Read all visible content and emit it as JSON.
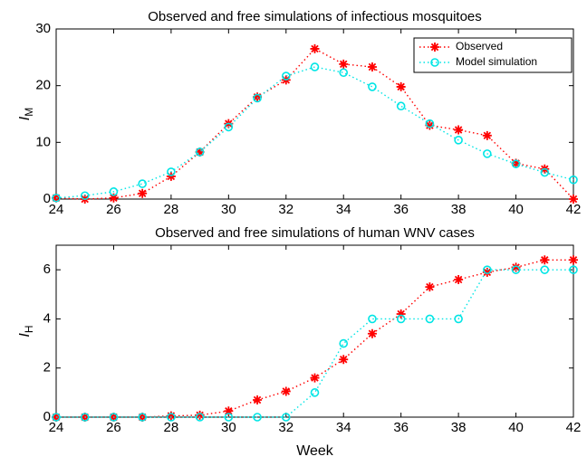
{
  "chart_data": [
    {
      "type": "line",
      "title": "Observed and free simulations of infectious mosquitoes",
      "y_label": {
        "symbol": "I",
        "subscript": "M"
      },
      "x": [
        24,
        25,
        26,
        27,
        28,
        29,
        30,
        31,
        32,
        33,
        34,
        35,
        36,
        37,
        38,
        39,
        40,
        41,
        42
      ],
      "series": [
        {
          "name": "Observed",
          "color": "#ff0000",
          "marker": "asterisk",
          "values": [
            0.2,
            0,
            0.2,
            1,
            4,
            8.3,
            13.3,
            18,
            21,
            26.5,
            23.8,
            23.3,
            19.8,
            13,
            12.2,
            11.2,
            6.3,
            5.3,
            0
          ]
        },
        {
          "name": "Model simulation",
          "color": "#00e5e5",
          "marker": "circle",
          "values": [
            0.2,
            0.6,
            1.3,
            2.7,
            4.8,
            8.3,
            12.7,
            17.8,
            21.7,
            23.3,
            22.3,
            19.8,
            16.4,
            13.3,
            10.4,
            8,
            6.2,
            4.7,
            3.4
          ]
        }
      ],
      "xlim": [
        24,
        42
      ],
      "xticks": [
        24,
        26,
        28,
        30,
        32,
        34,
        36,
        38,
        40,
        42
      ],
      "ylim": [
        0,
        30
      ],
      "yticks": [
        0,
        10,
        20,
        30
      ],
      "legend": "upper right"
    },
    {
      "type": "line",
      "title": "Observed and free simulations of human WNV cases",
      "y_label": {
        "symbol": "I",
        "subscript": "H"
      },
      "x_label": "Week",
      "x": [
        24,
        25,
        26,
        27,
        28,
        29,
        30,
        31,
        32,
        33,
        34,
        35,
        36,
        37,
        38,
        39,
        40,
        41,
        42
      ],
      "series": [
        {
          "name": "Observed",
          "color": "#ff0000",
          "marker": "asterisk",
          "values": [
            0,
            0,
            0,
            0,
            0.05,
            0.08,
            0.25,
            0.7,
            1.05,
            1.6,
            2.35,
            3.4,
            4.2,
            5.3,
            5.6,
            5.9,
            6.1,
            6.4,
            6.4
          ]
        },
        {
          "name": "Model simulation",
          "color": "#00e5e5",
          "marker": "circle",
          "values": [
            0,
            0,
            0,
            0,
            0,
            0,
            0,
            0,
            0,
            1,
            3,
            4,
            4,
            4,
            4,
            6,
            6,
            6,
            6
          ]
        }
      ],
      "xlim": [
        24,
        42
      ],
      "xticks": [
        24,
        26,
        28,
        30,
        32,
        34,
        36,
        38,
        40,
        42
      ],
      "ylim": [
        0,
        7
      ],
      "yticks": [
        0,
        2,
        4,
        6
      ]
    }
  ]
}
